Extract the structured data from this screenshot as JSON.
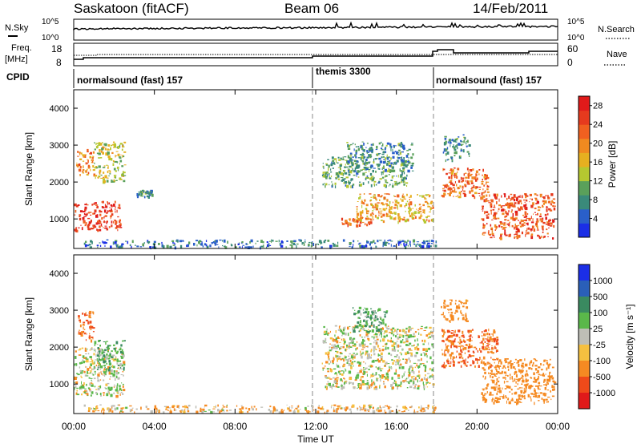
{
  "header": {
    "title_left": "Saskatoon (fitACF)",
    "title_center": "Beam 06",
    "title_right": "14/Feb/2011"
  },
  "noise_panel": {
    "label_left": "N.Sky",
    "label_right": "N.Search",
    "ticks_left": [
      "10^5",
      "10^0"
    ],
    "ticks_right": [
      "10^5",
      "10^0"
    ]
  },
  "freq_panel": {
    "label_left_top": "Freq.",
    "label_left_unit": "[MHz]",
    "label_right": "Nave",
    "ticks_left": [
      "18",
      "8"
    ],
    "ticks_right": [
      "60",
      "0"
    ]
  },
  "cpid": {
    "label": "CPID",
    "segments": [
      {
        "name": "normalsound (fast) 157",
        "start_hour": 0,
        "end_hour": 12.0
      },
      {
        "name": "themis 3300",
        "start_hour": 12.0,
        "end_hour": 18.0
      },
      {
        "name": "normalsound (fast) 157",
        "start_hour": 18.0,
        "end_hour": 24.0
      }
    ]
  },
  "colors": {
    "power_scale": [
      "#1b2ee6",
      "#2a5fc9",
      "#3a8a7a",
      "#5aa05a",
      "#b5c830",
      "#e6b020",
      "#f08a20",
      "#f06020",
      "#e63a1e",
      "#e01a1a"
    ],
    "velocity_scale": [
      "#e01a1a",
      "#ef4a1a",
      "#f58a22",
      "#f5c040",
      "#bebeb6",
      "#5ab84a",
      "#3a8a60",
      "#2a5fb8",
      "#1b2ee6"
    ]
  },
  "chart_data": [
    {
      "type": "heatmap",
      "panel": "power",
      "ylabel": "Slant Range [km]",
      "yticks": [
        "1000",
        "2000",
        "3000",
        "4000"
      ],
      "ylim": [
        200,
        4500
      ],
      "xlim": [
        0,
        24
      ],
      "colorbar_label": "Power [dB]",
      "colorbar_ticks": [
        "4",
        "8",
        "12",
        "16",
        "20",
        "24",
        "28"
      ],
      "colorbar_range": [
        0,
        30
      ],
      "regions": [
        {
          "t0": 0.0,
          "t1": 2.3,
          "r0": 700,
          "r1": 1500,
          "level": 26
        },
        {
          "t0": 0.1,
          "t1": 1.0,
          "r0": 2200,
          "r1": 2900,
          "level": 20
        },
        {
          "t0": 1.0,
          "t1": 2.5,
          "r0": 2000,
          "r1": 3100,
          "level": 14
        },
        {
          "t0": 3.1,
          "t1": 3.9,
          "r0": 1600,
          "r1": 1800,
          "level": 8
        },
        {
          "t0": 0.5,
          "t1": 18.0,
          "r0": 250,
          "r1": 450,
          "level": 6
        },
        {
          "t0": 13.2,
          "t1": 14.7,
          "r0": 850,
          "r1": 1050,
          "level": 22
        },
        {
          "t0": 14.0,
          "t1": 17.8,
          "r0": 950,
          "r1": 1700,
          "level": 18
        },
        {
          "t0": 12.3,
          "t1": 16.5,
          "r0": 1900,
          "r1": 2700,
          "level": 10
        },
        {
          "t0": 13.5,
          "t1": 16.8,
          "r0": 2300,
          "r1": 3100,
          "level": 8
        },
        {
          "t0": 18.2,
          "t1": 20.5,
          "r0": 1600,
          "r1": 2400,
          "level": 22
        },
        {
          "t0": 20.2,
          "t1": 23.8,
          "r0": 500,
          "r1": 1700,
          "level": 24
        },
        {
          "t0": 18.3,
          "t1": 19.6,
          "r0": 2600,
          "r1": 3300,
          "level": 8
        }
      ]
    },
    {
      "type": "heatmap",
      "panel": "velocity",
      "xlabel": "Time UT",
      "ylabel": "Slant Range [km]",
      "yticks": [
        "1000",
        "2000",
        "3000",
        "4000"
      ],
      "ylim": [
        200,
        4500
      ],
      "xlim": [
        0,
        24
      ],
      "xticks": [
        "00:00",
        "04:00",
        "08:00",
        "12:00",
        "16:00",
        "20:00",
        "00:00"
      ],
      "colorbar_label": "Velocity [m s⁻¹]",
      "colorbar_ticks": [
        "1000",
        "500",
        "100",
        "25",
        "-25",
        "-100",
        "-500",
        "-1000"
      ],
      "colorbar_range": [
        -1000,
        1000
      ],
      "regions": [
        {
          "t0": 0.0,
          "t1": 2.5,
          "r0": 700,
          "r1": 2000,
          "v": 0
        },
        {
          "t0": 0.2,
          "t1": 1.0,
          "r0": 2200,
          "r1": 3000,
          "v": -300
        },
        {
          "t0": 1.0,
          "t1": 2.5,
          "r0": 1400,
          "r1": 2200,
          "v": 80
        },
        {
          "t0": 0.5,
          "t1": 18.0,
          "r0": 250,
          "r1": 450,
          "v": -60
        },
        {
          "t0": 12.3,
          "t1": 17.8,
          "r0": 900,
          "r1": 2600,
          "v": 0
        },
        {
          "t0": 13.8,
          "t1": 15.5,
          "r0": 2400,
          "r1": 3100,
          "v": 90
        },
        {
          "t0": 18.2,
          "t1": 21.0,
          "r0": 1500,
          "r1": 2500,
          "v": -300
        },
        {
          "t0": 20.2,
          "t1": 23.8,
          "r0": 500,
          "r1": 1700,
          "v": -200
        },
        {
          "t0": 18.2,
          "t1": 19.5,
          "r0": 2700,
          "r1": 3300,
          "v": -150
        }
      ]
    }
  ]
}
